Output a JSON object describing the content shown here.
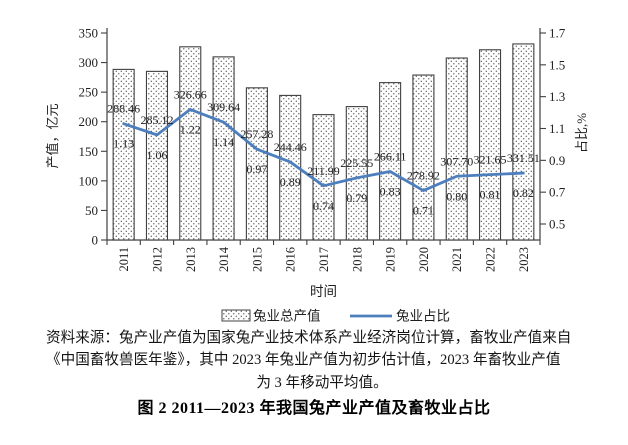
{
  "figure": {
    "source_note_lines": [
      "资料来源：兔产业产值为国家兔产业技术体系产业经济岗位计算，畜牧业产值来自",
      "《中国畜牧兽医年鉴》，其中 2023 年兔业产值为初步估计值，2023 年畜牧业产值",
      "为 3 年移动平均值。"
    ],
    "title": "图 2  2011—2023 年我国兔产业产值及畜牧业占比"
  },
  "chart_data": {
    "type": "bar",
    "subtype": "bar-line-combo-dual-axis",
    "title": "",
    "categories": [
      "2011",
      "2012",
      "2013",
      "2014",
      "2015",
      "2016",
      "2017",
      "2018",
      "2019",
      "2020",
      "2021",
      "2022",
      "2023"
    ],
    "xlabel": "时间",
    "series": [
      {
        "name": "兔业总产值",
        "type": "bar",
        "axis": "left",
        "values": [
          288.46,
          285.12,
          326.66,
          309.64,
          257.28,
          244.46,
          211.99,
          225.55,
          266.11,
          278.92,
          307.7,
          321.65,
          331.51
        ],
        "labels": [
          "288.46",
          "285.12",
          "326.66",
          "309.64",
          "257.28",
          "244.46",
          "211.99",
          "225.55",
          "266.11",
          "278.92",
          "307.70",
          "321.65",
          "331.51"
        ]
      },
      {
        "name": "兔业占比",
        "type": "line",
        "axis": "right",
        "values": [
          1.13,
          1.06,
          1.22,
          1.14,
          0.97,
          0.89,
          0.74,
          0.79,
          0.83,
          0.71,
          0.8,
          0.81,
          0.82
        ],
        "labels": [
          "1.13",
          "1.06",
          "1.22",
          "1.14",
          "0.97",
          "0.89",
          "0.74",
          "0.79",
          "0.83",
          "0.71",
          "0.80",
          "0.81",
          "0.82"
        ]
      }
    ],
    "left_axis": {
      "label": "产值，亿元",
      "min": 0,
      "max": 350,
      "ticks": [
        "0",
        "50",
        "100",
        "150",
        "200",
        "250",
        "300",
        "350"
      ]
    },
    "right_axis": {
      "label": "占比,%",
      "min": 0.5,
      "max": 1.7,
      "ticks": [
        "0.5",
        "0.7",
        "0.9",
        "1.1",
        "1.3",
        "1.5",
        "1.7"
      ]
    },
    "grid": "off",
    "legend_position": "bottom",
    "colors": {
      "line": "#4d7ebd",
      "bar_border": "#404040",
      "bar_dot": "#595959",
      "bar_fill": "#ffffff",
      "axis": "#404040",
      "text": "#1f1f1f"
    }
  }
}
